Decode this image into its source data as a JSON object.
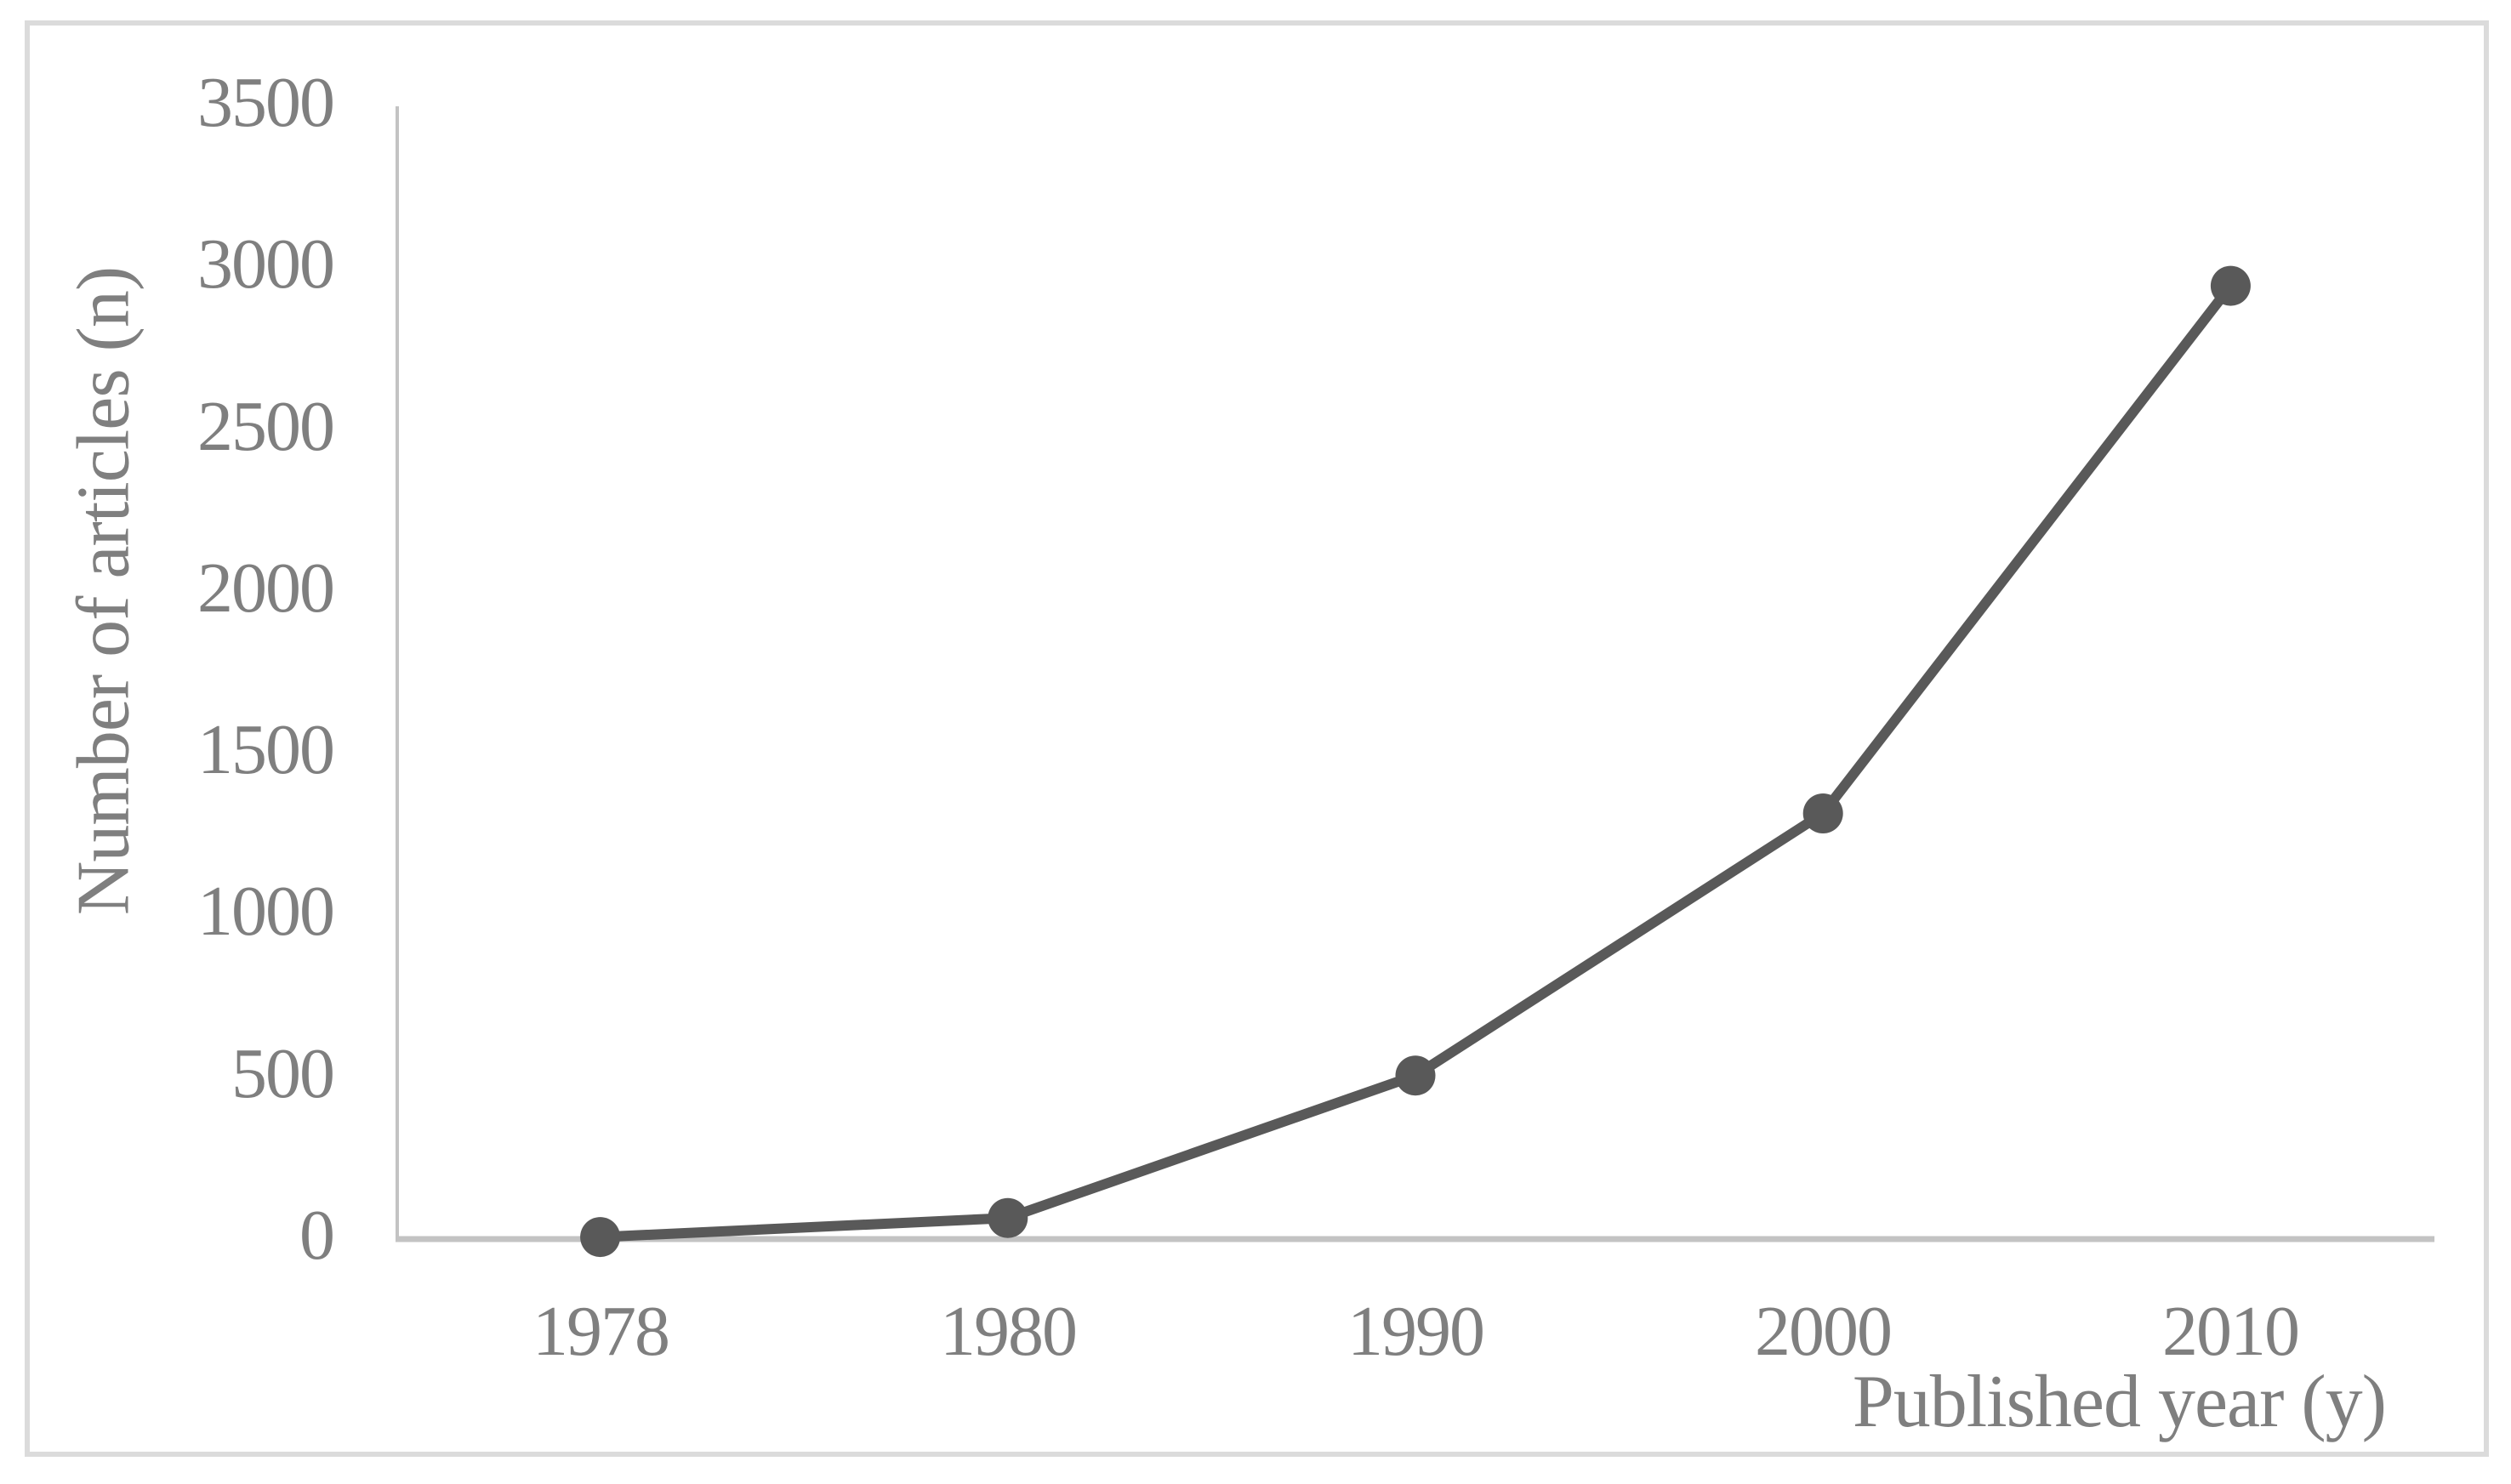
{
  "chart_data": {
    "type": "line",
    "title": "",
    "xlabel": "Published year (y)",
    "ylabel": "Number of articles (n)",
    "categories": [
      "1978",
      "1980",
      "1990",
      "2000",
      "2010"
    ],
    "series": [
      {
        "name": "Number of articles",
        "values": [
          1,
          60,
          500,
          1310,
          2940
        ]
      }
    ],
    "ylim": [
      0,
      3500
    ],
    "yticks": [
      0,
      500,
      1000,
      1500,
      2000,
      2500,
      3000,
      3500
    ],
    "grid": false,
    "legend": "none",
    "marker": "circle",
    "colors": {
      "line": "#595959",
      "marker": "#595959",
      "axis": "#c3c3c3",
      "text": "#7f7f7f",
      "border": "#dbdbdb",
      "background": "#ffffff"
    }
  }
}
